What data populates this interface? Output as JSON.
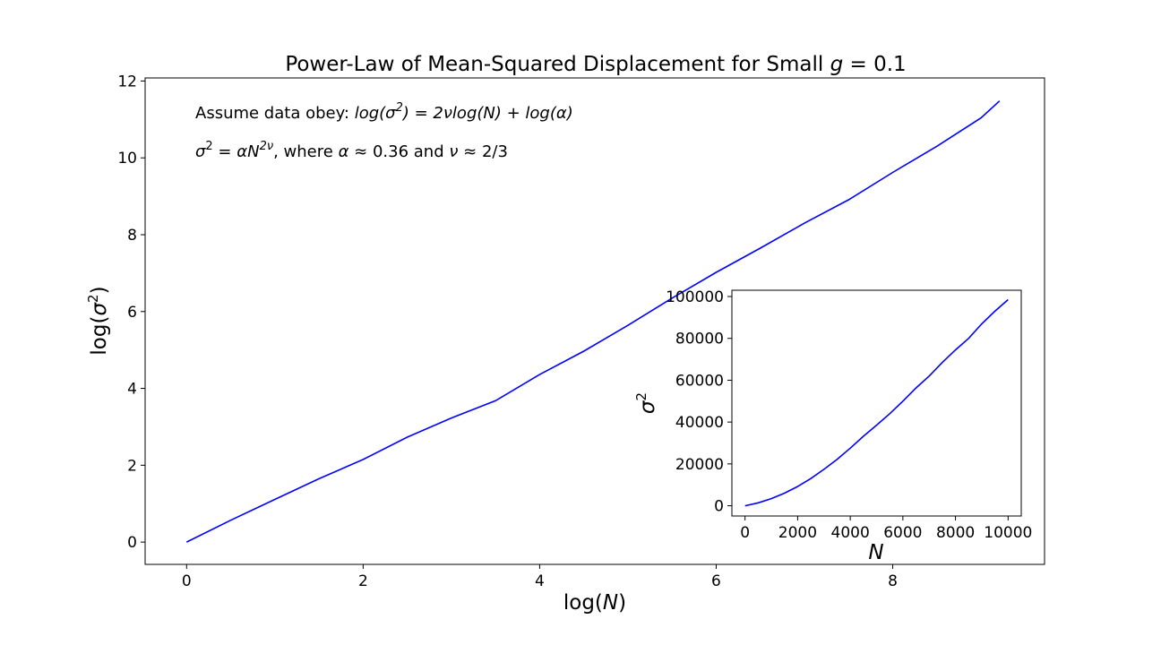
{
  "chart_data": [
    {
      "id": "main",
      "type": "line",
      "title": {
        "prefix": "Power-Law of Mean-Squared Displacement for Small ",
        "var": "g",
        "suffix": " = 0.1"
      },
      "xlabel": {
        "prefix": "log(",
        "var": "N",
        "suffix": ")"
      },
      "ylabel": {
        "prefix": "log(",
        "var": "σ",
        "sup": "2",
        "suffix": ")"
      },
      "xlim": [
        -0.47,
        9.72
      ],
      "ylim": [
        -0.58,
        12.08
      ],
      "xticks": [
        0,
        2,
        4,
        6,
        8
      ],
      "yticks": [
        0,
        2,
        4,
        6,
        8,
        10,
        12
      ],
      "grid": false,
      "line_color": "#0000ff",
      "series": [
        {
          "x": [
            0.0,
            0.5,
            1.0,
            1.5,
            2.0,
            2.5,
            3.0,
            3.5,
            4.0,
            4.5,
            5.0,
            5.5,
            6.0,
            6.5,
            7.0,
            7.5,
            8.0,
            8.5,
            9.0,
            9.21
          ],
          "y": [
            0.0,
            0.57,
            1.11,
            1.65,
            2.15,
            2.73,
            3.23,
            3.68,
            4.36,
            4.97,
            5.64,
            6.35,
            7.02,
            7.65,
            8.3,
            8.91,
            9.62,
            10.3,
            11.04,
            11.48
          ]
        }
      ],
      "annotations": {
        "line1": {
          "lead": "Assume data obey: ",
          "eq_a": "log(σ",
          "sup1": "2",
          "eq_b": ") = 2νlog(N) + log(α)"
        },
        "line2": {
          "eq_a": "σ",
          "sup1": "2",
          "eq_b": " = αN",
          "sup2": "2ν",
          "text_a": ", where ",
          "eq_c": "α",
          "text_b": " ≈ 0.36 and ",
          "eq_d": "ν",
          "text_c": " ≈ 2/3"
        }
      }
    },
    {
      "id": "inset",
      "type": "line",
      "title": "",
      "xlabel": {
        "var": "N"
      },
      "ylabel": {
        "var": "σ",
        "sup": "2"
      },
      "xlim": [
        -500,
        10500
      ],
      "ylim": [
        -4900,
        103000
      ],
      "xticks": [
        0,
        2000,
        4000,
        6000,
        8000,
        10000
      ],
      "yticks": [
        0,
        20000,
        40000,
        60000,
        80000,
        100000
      ],
      "grid": false,
      "line_color": "#0000ff",
      "series": [
        {
          "x": [
            0,
            500,
            1000,
            1500,
            2000,
            2500,
            3000,
            3500,
            4000,
            4500,
            5000,
            5500,
            6000,
            6500,
            7000,
            7500,
            8000,
            8500,
            9000,
            9500,
            10000
          ],
          "y": [
            0,
            1400,
            3400,
            6000,
            9200,
            13000,
            17400,
            22200,
            27500,
            33200,
            38500,
            44000,
            50000,
            56300,
            62000,
            68500,
            74500,
            80000,
            87000,
            93000,
            98500
          ]
        }
      ]
    }
  ]
}
